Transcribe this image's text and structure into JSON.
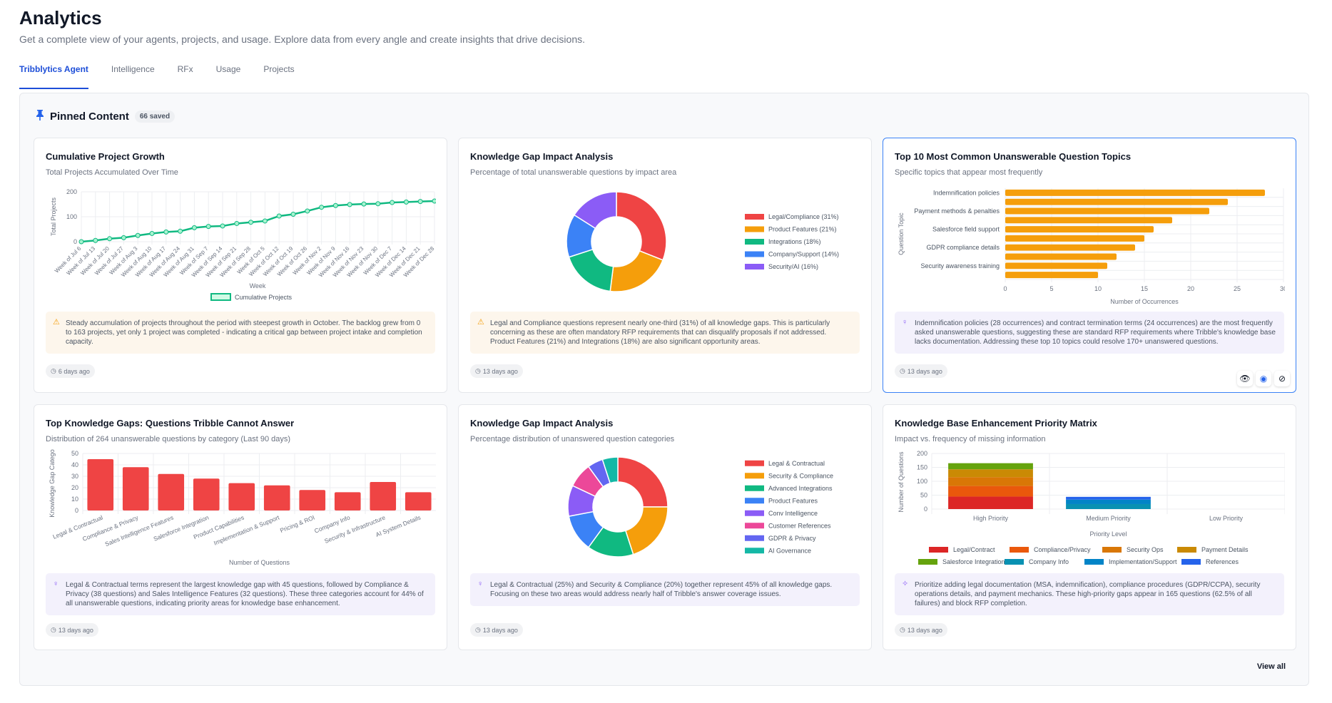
{
  "header": {
    "title": "Analytics",
    "subtitle": "Get a complete view of your agents, projects, and usage. Explore data from every angle and create insights that drive decisions."
  },
  "tabs": [
    {
      "label": "Tribblytics Agent",
      "active": true
    },
    {
      "label": "Intelligence"
    },
    {
      "label": "RFx"
    },
    {
      "label": "Usage"
    },
    {
      "label": "Projects"
    }
  ],
  "pinned": {
    "title": "Pinned Content",
    "count": "66 saved",
    "view_all": "View all",
    "icon": "pin-icon"
  },
  "cards": [
    {
      "title": "Cumulative Project Growth",
      "subtitle": "Total Projects Accumulated Over Time",
      "insight_type": "warning",
      "insight": "Steady accumulation of projects throughout the period with steepest growth in October. The backlog grew from 0 to 163 projects, yet only 1 project was completed - indicating a critical gap between project intake and completion capacity.",
      "timestamp": "6 days ago"
    },
    {
      "title": "Knowledge Gap Impact Analysis",
      "subtitle": "Percentage of total unanswerable questions by impact area",
      "insight_type": "warning",
      "insight": "Legal and Compliance questions represent nearly one-third (31%) of all knowledge gaps. This is particularly concerning as these are often mandatory RFP requirements that can disqualify proposals if not addressed. Product Features (21%) and Integrations (18%) are also significant opportunity areas.",
      "timestamp": "13 days ago"
    },
    {
      "title": "Top 10 Most Common Unanswerable Question Topics",
      "subtitle": "Specific topics that appear most frequently",
      "insight_type": "idea",
      "insight": "Indemnification policies (28 occurrences) and contract termination terms (24 occurrences) are the most frequently asked unanswerable questions, suggesting these are standard RFP requirements where Tribble's knowledge base lacks documentation. Addressing these top 10 topics could resolve 170+ unanswered questions.",
      "timestamp": "13 days ago",
      "selected": true,
      "actions": [
        "eye-icon",
        "globe-icon",
        "unpin-icon"
      ]
    },
    {
      "title": "Top Knowledge Gaps: Questions Tribble Cannot Answer",
      "subtitle": "Distribution of 264 unanswerable questions by category (Last 90 days)",
      "insight_type": "idea",
      "insight": "Legal & Contractual terms represent the largest knowledge gap with 45 questions, followed by Compliance & Privacy (38 questions) and Sales Intelligence Features (32 questions). These three categories account for 44% of all unanswerable questions, indicating priority areas for knowledge base enhancement.",
      "timestamp": "13 days ago"
    },
    {
      "title": "Knowledge Gap Impact Analysis",
      "subtitle": "Percentage distribution of unanswered question categories",
      "insight_type": "idea",
      "insight": "Legal & Contractual (25%) and Security & Compliance (20%) together represent 45% of all knowledge gaps. Focusing on these two areas would address nearly half of Tribble's answer coverage issues.",
      "timestamp": "13 days ago"
    },
    {
      "title": "Knowledge Base Enhancement Priority Matrix",
      "subtitle": "Impact vs. frequency of missing information",
      "insight_type": "sparkle",
      "insight": "Prioritize adding legal documentation (MSA, indemnification), compliance procedures (GDPR/CCPA), security operations details, and payment mechanics. These high-priority gaps appear in 165 questions (62.5% of all failures) and block RFP completion.",
      "timestamp": "13 days ago"
    }
  ],
  "chart_data": [
    {
      "type": "line",
      "xlabel": "Week",
      "ylabel": "Total Projects",
      "ylim": [
        0,
        200
      ],
      "yticks": [
        0,
        100,
        200
      ],
      "grid": true,
      "legend": "bottom",
      "color": "#10b981",
      "categories": [
        "Week of Jul 6",
        "Week of Jul 13",
        "Week of Jul 20",
        "Week of Jul 27",
        "Week of Aug 3",
        "Week of Aug 10",
        "Week of Aug 17",
        "Week of Aug 24",
        "Week of Aug 31",
        "Week of Sep 7",
        "Week of Sep 14",
        "Week of Sep 21",
        "Week of Sep 28",
        "Week of Oct 5",
        "Week of Oct 12",
        "Week of Oct 19",
        "Week of Oct 26",
        "Week of Nov 2",
        "Week of Nov 9",
        "Week of Nov 16",
        "Week of Nov 23",
        "Week of Nov 30",
        "Week of Dec 7",
        "Week of Dec 14",
        "Week of Dec 21",
        "Week of Dec 28"
      ],
      "series": [
        {
          "name": "Cumulative Projects",
          "values": [
            0,
            5,
            12,
            16,
            25,
            33,
            39,
            42,
            56,
            61,
            63,
            73,
            78,
            83,
            103,
            110,
            123,
            138,
            145,
            149,
            151,
            152,
            157,
            159,
            161,
            163
          ]
        }
      ]
    },
    {
      "type": "pie",
      "donut": true,
      "legend": "right",
      "categories": [
        "Legal/Compliance (31%)",
        "Product Features (21%)",
        "Integrations (18%)",
        "Company/Support (14%)",
        "Security/AI (16%)"
      ],
      "values": [
        31,
        21,
        18,
        14,
        16
      ],
      "colors": [
        "#ef4444",
        "#f59e0b",
        "#10b981",
        "#3b82f6",
        "#8b5cf6"
      ]
    },
    {
      "type": "bar",
      "orientation": "horizontal",
      "xlabel": "Number of Occurrences",
      "ylabel": "Question Topic",
      "xlim": [
        0,
        30
      ],
      "xticks": [
        0,
        5,
        10,
        15,
        20,
        25,
        30
      ],
      "grid": true,
      "color": "#f59e0b",
      "categories": [
        "Indemnification policies",
        "",
        "Payment methods & penalties",
        "",
        "Salesforce field support",
        "",
        "GDPR compliance details",
        "",
        "Security awareness training",
        ""
      ],
      "values": [
        28,
        24,
        22,
        18,
        16,
        15,
        14,
        12,
        11,
        10
      ]
    },
    {
      "type": "bar",
      "xlabel": "Number of Questions",
      "ylabel": "Knowledge Gap Catego",
      "ylim": [
        0,
        50
      ],
      "yticks": [
        0,
        10,
        20,
        30,
        40,
        50
      ],
      "grid": true,
      "color": "#ef4444",
      "categories": [
        "Legal & Contractual",
        "Compliance & Privacy",
        "Sales Intelligence Features",
        "Salesforce Integration",
        "Product Capabilities",
        "Implementation & Support",
        "Pricing & ROI",
        "Company Info",
        "Security & Infrastructure",
        "AI System Details"
      ],
      "values": [
        45,
        38,
        32,
        28,
        24,
        22,
        18,
        16,
        25,
        16
      ]
    },
    {
      "type": "pie",
      "donut": true,
      "legend": "right",
      "categories": [
        "Legal & Contractual",
        "Security & Compliance",
        "Advanced Integrations",
        "Product Features",
        "Conv Intelligence",
        "Customer References",
        "GDPR & Privacy",
        "AI Governance"
      ],
      "values": [
        25,
        20,
        15,
        12,
        10,
        8,
        5,
        5
      ],
      "colors": [
        "#ef4444",
        "#f59e0b",
        "#10b981",
        "#3b82f6",
        "#8b5cf6",
        "#ec4899",
        "#6366f1",
        "#14b8a6"
      ]
    },
    {
      "type": "bar",
      "stacked": true,
      "xlabel": "Priority Level",
      "ylabel": "Number of Questions",
      "ylim": [
        0,
        200
      ],
      "yticks": [
        0,
        50,
        100,
        150,
        200
      ],
      "grid": true,
      "legend": "bottom",
      "categories": [
        "High Priority",
        "Medium Priority",
        "Low Priority"
      ],
      "series": [
        {
          "name": "Legal/Contract",
          "color": "#dc2626",
          "values": [
            45,
            0,
            0
          ]
        },
        {
          "name": "Compliance/Privacy",
          "color": "#ea580c",
          "values": [
            38,
            0,
            0
          ]
        },
        {
          "name": "Security Ops",
          "color": "#d97706",
          "values": [
            32,
            0,
            0
          ]
        },
        {
          "name": "Payment Details",
          "color": "#ca8a04",
          "values": [
            28,
            0,
            0
          ]
        },
        {
          "name": "Salesforce Integration",
          "color": "#65a30d",
          "values": [
            22,
            0,
            0
          ]
        },
        {
          "name": "Company Info",
          "color": "#0891b2",
          "values": [
            0,
            18,
            0
          ]
        },
        {
          "name": "Implementation/Support",
          "color": "#0284c7",
          "values": [
            0,
            16,
            0
          ]
        },
        {
          "name": "References",
          "color": "#2563eb",
          "values": [
            0,
            10,
            0
          ]
        }
      ]
    }
  ]
}
